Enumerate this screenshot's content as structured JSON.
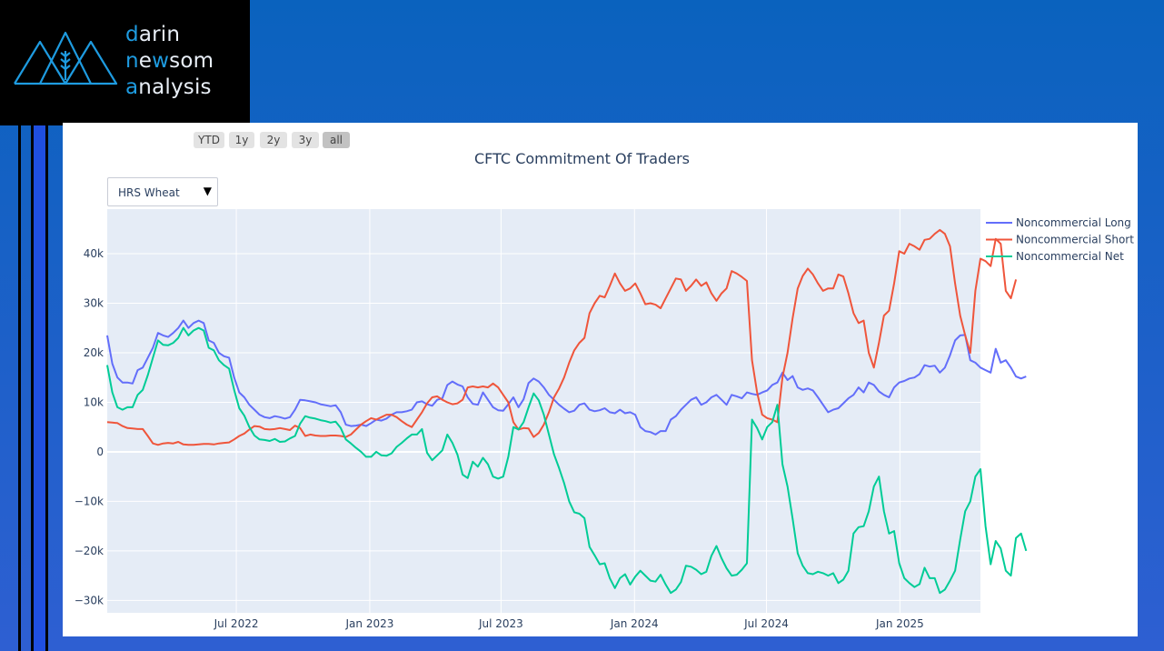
{
  "brand": {
    "line1_a": "d",
    "line1_b": "arin",
    "line2_a": "n",
    "line2_b": "e",
    "line2_c": "w",
    "line2_d": "som",
    "line3_a": "a",
    "line3_b": "nalysis",
    "accent": "#1e9be0"
  },
  "range_buttons": [
    {
      "label": "YTD"
    },
    {
      "label": "1y"
    },
    {
      "label": "2y"
    },
    {
      "label": "3y"
    },
    {
      "label": "all",
      "active": true
    }
  ],
  "dropdown": {
    "selected": "HRS Wheat",
    "arrow": "▼"
  },
  "chart_data": {
    "type": "line",
    "title": "CFTC Commitment Of Traders",
    "x_start": "2022-01-04",
    "x_end": "2025-04-22",
    "x_interval_days": 7,
    "ylim": [
      -32500,
      49000
    ],
    "y_ticks": [
      {
        "v": 40000,
        "label": "40k"
      },
      {
        "v": 30000,
        "label": "30k"
      },
      {
        "v": 20000,
        "label": "20k"
      },
      {
        "v": 10000,
        "label": "10k"
      },
      {
        "v": 0,
        "label": "0"
      },
      {
        "v": -10000,
        "label": "−10k"
      },
      {
        "v": -20000,
        "label": "−20k"
      },
      {
        "v": -30000,
        "label": "−30k"
      }
    ],
    "x_ticks": [
      {
        "date": "2022-07-01",
        "label": "Jul 2022"
      },
      {
        "date": "2023-01-01",
        "label": "Jan 2023"
      },
      {
        "date": "2023-07-01",
        "label": "Jul 2023"
      },
      {
        "date": "2024-01-01",
        "label": "Jan 2024"
      },
      {
        "date": "2024-07-01",
        "label": "Jul 2024"
      },
      {
        "date": "2025-01-01",
        "label": "Jan 2025"
      }
    ],
    "grid": true,
    "legend_position": "right",
    "series": [
      {
        "name": "Noncommercial Long",
        "color": "#636efa",
        "values": [
          23500,
          17800,
          15000,
          14000,
          14000,
          13800,
          16500,
          17000,
          19000,
          21000,
          24000,
          23500,
          23200,
          24000,
          25000,
          26500,
          25000,
          26000,
          26500,
          26000,
          22500,
          22000,
          20000,
          19300,
          19000,
          15000,
          12000,
          11000,
          9500,
          8500,
          7500,
          7000,
          6800,
          7200,
          7000,
          6700,
          7000,
          8500,
          10500,
          10400,
          10200,
          10000,
          9600,
          9400,
          9200,
          9400,
          8000,
          5500,
          5200,
          5300,
          5500,
          5200,
          5800,
          6500,
          6300,
          6700,
          7500,
          8000,
          8000,
          8200,
          8500,
          10000,
          10200,
          9600,
          9300,
          10500,
          10800,
          13500,
          14200,
          13600,
          13200,
          11000,
          9700,
          9500,
          12000,
          10500,
          9000,
          8400,
          8300,
          9600,
          11000,
          9000,
          10600,
          13900,
          14800,
          14200,
          13000,
          11500,
          10500,
          9500,
          8700,
          8000,
          8300,
          9500,
          9800,
          8500,
          8200,
          8400,
          8800,
          8000,
          7800,
          8500,
          7800,
          8000,
          7500,
          5000,
          4200,
          4000,
          3500,
          4200,
          4200,
          6500,
          7200,
          8500,
          9500,
          10500,
          11000,
          9500,
          10000,
          11000,
          11500,
          10500,
          9500,
          11500,
          11200,
          10800,
          12000,
          11700,
          11500,
          12000,
          12400,
          13500,
          14000,
          16000,
          14500,
          15300,
          13000,
          12500,
          12800,
          12400,
          11000,
          9500,
          8000,
          8500,
          8800,
          9800,
          10800,
          11500,
          13000,
          12000,
          14000,
          13500,
          12200,
          11500,
          11000,
          13000,
          14000,
          14300,
          14800,
          15000,
          15700,
          17500,
          17200,
          17400,
          16000,
          17000,
          19500,
          22500,
          23500,
          23600,
          18500,
          18000,
          17000,
          16500,
          16000,
          20800,
          18000,
          18500,
          17000,
          15200,
          14800,
          15200
        ]
      },
      {
        "name": "Noncommercial Short",
        "color": "#ef553b",
        "values": [
          6000,
          5900,
          5800,
          5200,
          4800,
          4700,
          4600,
          4600,
          3200,
          1700,
          1400,
          1700,
          1800,
          1700,
          2000,
          1500,
          1400,
          1400,
          1500,
          1600,
          1600,
          1500,
          1700,
          1800,
          1900,
          2500,
          3200,
          3700,
          4500,
          5200,
          5100,
          4600,
          4500,
          4600,
          4800,
          4600,
          4400,
          5300,
          4800,
          3200,
          3500,
          3300,
          3200,
          3200,
          3300,
          3300,
          3200,
          3000,
          3500,
          4500,
          5500,
          6200,
          6800,
          6500,
          7000,
          7500,
          7500,
          7000,
          6200,
          5500,
          5000,
          6500,
          8000,
          9800,
          11000,
          11200,
          10500,
          10000,
          9600,
          9800,
          10500,
          13000,
          13200,
          13000,
          13200,
          13000,
          13800,
          13000,
          11500,
          10000,
          6000,
          4500,
          4800,
          4700,
          3000,
          3800,
          5500,
          8000,
          11000,
          12800,
          15000,
          18000,
          20500,
          22000,
          23000,
          28000,
          30000,
          31500,
          31200,
          33500,
          36000,
          34000,
          32500,
          33000,
          34000,
          32000,
          29800,
          30000,
          29700,
          29000,
          31000,
          33000,
          35000,
          34800,
          32500,
          33500,
          34800,
          33500,
          34200,
          32000,
          30500,
          32000,
          33000,
          36500,
          36000,
          35300,
          34500,
          18500,
          12000,
          7500,
          6800,
          6500,
          6000,
          15000,
          20000,
          27000,
          33000,
          35500,
          37000,
          35800,
          34000,
          32500,
          33000,
          33000,
          35800,
          35400,
          32000,
          28000,
          26000,
          26500,
          20000,
          17000,
          22000,
          27500,
          28500,
          34000,
          40500,
          40000,
          42000,
          41500,
          40800,
          42800,
          43000,
          44000,
          44800,
          44000,
          41500,
          34000,
          27500,
          23500,
          20000,
          32500,
          39000,
          38500,
          37500,
          43000,
          42000,
          32500,
          31000,
          34800
        ]
      },
      {
        "name": "Noncommercial Net",
        "color": "#00cc96",
        "values": [
          17500,
          12000,
          9000,
          8500,
          9000,
          9000,
          11500,
          12500,
          15500,
          19000,
          22500,
          21600,
          21500,
          22000,
          23000,
          25000,
          23500,
          24500,
          25000,
          24500,
          21000,
          20500,
          18500,
          17500,
          16800,
          12500,
          8800,
          7300,
          5000,
          3300,
          2500,
          2400,
          2200,
          2600,
          2000,
          2100,
          2700,
          3200,
          5700,
          7200,
          6900,
          6700,
          6400,
          6200,
          5900,
          6100,
          4800,
          2500,
          1700,
          800,
          0,
          -1000,
          -1000,
          0,
          -700,
          -800,
          -300,
          1000,
          1800,
          2700,
          3500,
          3500,
          4600,
          -200,
          -1700,
          -700,
          300,
          3500,
          1800,
          -600,
          -4600,
          -5300,
          -2000,
          -3000,
          -1200,
          -2500,
          -5000,
          -5400,
          -5000,
          -1000,
          5000,
          4500,
          6000,
          9000,
          11800,
          10400,
          7500,
          3500,
          -500,
          -3300,
          -6300,
          -10000,
          -12200,
          -12500,
          -13400,
          -19200,
          -20900,
          -22700,
          -22500,
          -25500,
          -27500,
          -25500,
          -24700,
          -26800,
          -25200,
          -24000,
          -25000,
          -26000,
          -26200,
          -24800,
          -26800,
          -28500,
          -27800,
          -26300,
          -23000,
          -23200,
          -23800,
          -24700,
          -24200,
          -21000,
          -19000,
          -21500,
          -23500,
          -25000,
          -24800,
          -23800,
          -22500,
          6500,
          4800,
          2500,
          5000,
          6000,
          9500,
          -2500,
          -7000,
          -13500,
          -20500,
          -23000,
          -24500,
          -24700,
          -24200,
          -24500,
          -25000,
          -24500,
          -26500,
          -25800,
          -24000,
          -16500,
          -15200,
          -15000,
          -12000,
          -7000,
          -5000,
          -12000,
          -16500,
          -16000,
          -22500,
          -25500,
          -26500,
          -27300,
          -26700,
          -23400,
          -25500,
          -25500,
          -28500,
          -27800,
          -26000,
          -24000,
          -17700,
          -12000,
          -10000,
          -5000,
          -3500,
          -15000,
          -22700,
          -18000,
          -19500,
          -24000,
          -25000,
          -17400,
          -16500,
          -20000
        ]
      }
    ]
  }
}
